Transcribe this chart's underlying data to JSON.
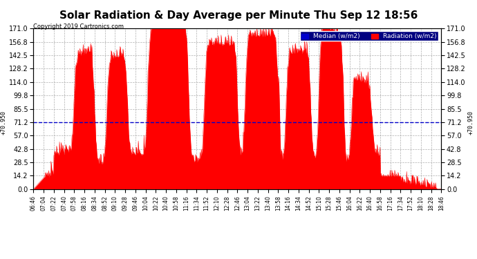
{
  "title": "Solar Radiation & Day Average per Minute Thu Sep 12 18:56",
  "copyright": "Copyright 2019 Cartronics.com",
  "median_value": 70.95,
  "ymin": 0.0,
  "ymax": 171.0,
  "yticks": [
    0.0,
    14.2,
    28.5,
    42.8,
    57.0,
    71.2,
    85.5,
    99.8,
    114.0,
    128.2,
    142.5,
    156.8,
    171.0
  ],
  "background_color": "#ffffff",
  "grid_color": "#999999",
  "radiation_color": "#ff0000",
  "median_color": "#0000cc",
  "title_fontsize": 11,
  "legend_median_label": "Median (w/m2)",
  "legend_radiation_label": "Radiation (w/m2)",
  "xtick_labels": [
    "06:46",
    "07:04",
    "07:22",
    "07:40",
    "07:58",
    "08:16",
    "08:34",
    "08:52",
    "09:10",
    "09:28",
    "09:46",
    "10:04",
    "10:22",
    "10:40",
    "10:58",
    "11:16",
    "11:34",
    "11:52",
    "12:10",
    "12:28",
    "12:46",
    "13:04",
    "13:22",
    "13:40",
    "13:58",
    "14:16",
    "14:34",
    "14:52",
    "15:10",
    "15:28",
    "15:46",
    "16:04",
    "16:22",
    "16:40",
    "16:58",
    "17:16",
    "17:34",
    "17:52",
    "18:10",
    "18:28",
    "18:46"
  ]
}
